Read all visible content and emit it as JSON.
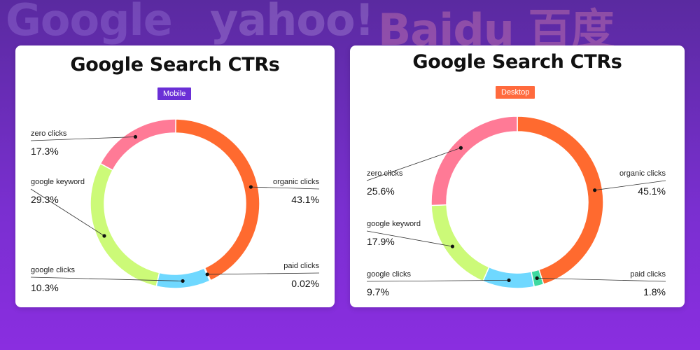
{
  "background": {
    "logos": [
      "Google",
      "yahoo!",
      "Baidu 百度"
    ]
  },
  "chart_data": [
    {
      "type": "pie",
      "title": "Google Search CTRs",
      "subtitle": "Mobile",
      "subtitle_color": "#6a2fd6",
      "donut": true,
      "categories": [
        "organic clicks",
        "paid clicks",
        "google clicks",
        "google keyword",
        "zero clicks"
      ],
      "values": [
        43.1,
        0.02,
        10.3,
        29.3,
        17.3
      ],
      "value_labels": [
        "43.1%",
        "0.02%",
        "10.3%",
        "29.3%",
        "17.3%"
      ],
      "colors": [
        "#ff6a2f",
        "#3ed9a0",
        "#6fd8ff",
        "#ccfa78",
        "#ff7a96"
      ]
    },
    {
      "type": "pie",
      "title": "Google Search CTRs",
      "subtitle": "Desktop",
      "subtitle_color": "#ff6a3d",
      "donut": true,
      "categories": [
        "organic clicks",
        "paid clicks",
        "google clicks",
        "google keyword",
        "zero clicks"
      ],
      "values": [
        45.1,
        1.8,
        9.7,
        17.9,
        25.6
      ],
      "value_labels": [
        "45.1%",
        "1.8%",
        "9.7%",
        "17.9%",
        "25.6%"
      ],
      "colors": [
        "#ff6a2f",
        "#3ed9a0",
        "#6fd8ff",
        "#ccfa78",
        "#ff7a96"
      ]
    }
  ]
}
